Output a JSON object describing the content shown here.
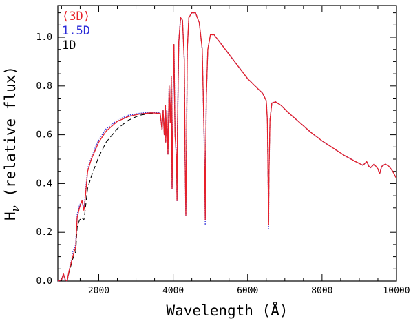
{
  "chart_data": {
    "type": "line",
    "title": "",
    "xlabel": "Wavelength (Å)",
    "ylabel": "H",
    "ylabel_subscript": "ν",
    "ylabel_suffix": " (relative flux)",
    "xlim": [
      900,
      10000
    ],
    "ylim": [
      0,
      1.13
    ],
    "xticks": [
      2000,
      4000,
      6000,
      8000,
      10000
    ],
    "yticks": [
      0.0,
      0.2,
      0.4,
      0.6,
      0.8,
      1.0
    ],
    "xtick_labels": [
      "2000",
      "4000",
      "6000",
      "8000",
      "10000"
    ],
    "ytick_labels": [
      "0.0",
      "0.2",
      "0.4",
      "0.6",
      "0.8",
      "1.0"
    ],
    "legend_position": "top-left",
    "series": [
      {
        "name": "⟨3D⟩",
        "color": "#e8202a",
        "style": "solid",
        "x": [
          900,
          1000,
          1050,
          1100,
          1150,
          1200,
          1300,
          1380,
          1420,
          1480,
          1550,
          1600,
          1620,
          1700,
          1800,
          2000,
          2200,
          2500,
          2800,
          3100,
          3400,
          3650,
          3700,
          3730,
          3760,
          3790,
          3800,
          3830,
          3860,
          3890,
          3920,
          3950,
          3970,
          4000,
          4020,
          4050,
          4090,
          4102,
          4115,
          4150,
          4200,
          4250,
          4300,
          4320,
          4340,
          4360,
          4380,
          4420,
          4500,
          4600,
          4700,
          4780,
          4830,
          4850,
          4861,
          4870,
          4890,
          4930,
          5000,
          5100,
          5200,
          5400,
          5600,
          5800,
          6000,
          6200,
          6400,
          6500,
          6530,
          6550,
          6563,
          6575,
          6600,
          6650,
          6750,
          6900,
          7100,
          7400,
          7700,
          8000,
          8300,
          8600,
          8900,
          9100,
          9200,
          9230,
          9260,
          9300,
          9400,
          9500,
          9546,
          9600,
          9700,
          9800,
          9900,
          10000
        ],
        "y": [
          0.0,
          0.005,
          0.03,
          0.005,
          0.0,
          0.04,
          0.1,
          0.14,
          0.26,
          0.3,
          0.33,
          0.29,
          0.31,
          0.45,
          0.5,
          0.57,
          0.615,
          0.655,
          0.675,
          0.685,
          0.69,
          0.688,
          0.62,
          0.7,
          0.6,
          0.72,
          0.57,
          0.7,
          0.52,
          0.8,
          0.65,
          0.84,
          0.38,
          0.8,
          0.97,
          0.6,
          0.5,
          0.33,
          0.62,
          0.98,
          1.08,
          1.07,
          0.9,
          0.5,
          0.27,
          0.6,
          0.95,
          1.08,
          1.1,
          1.1,
          1.06,
          0.95,
          0.6,
          0.4,
          0.25,
          0.45,
          0.75,
          0.95,
          1.01,
          1.01,
          0.99,
          0.95,
          0.91,
          0.87,
          0.83,
          0.8,
          0.77,
          0.74,
          0.66,
          0.4,
          0.23,
          0.45,
          0.66,
          0.73,
          0.735,
          0.72,
          0.69,
          0.65,
          0.61,
          0.575,
          0.545,
          0.515,
          0.49,
          0.475,
          0.49,
          0.48,
          0.47,
          0.465,
          0.48,
          0.46,
          0.44,
          0.47,
          0.48,
          0.47,
          0.45,
          0.42
        ]
      },
      {
        "name": "1.5D",
        "color": "#2a2ad8",
        "style": "dotted",
        "x": [
          900,
          1000,
          1050,
          1100,
          1150,
          1200,
          1300,
          1380,
          1420,
          1480,
          1550,
          1600,
          1620,
          1700,
          1800,
          2000,
          2200,
          2500,
          2800,
          3100,
          3400,
          3650,
          3700,
          3730,
          3760,
          3790,
          3800,
          3830,
          3860,
          3890,
          3920,
          3950,
          3970,
          4000,
          4020,
          4050,
          4090,
          4102,
          4115,
          4150,
          4200,
          4250,
          4300,
          4320,
          4340,
          4360,
          4380,
          4420,
          4500,
          4600,
          4700,
          4780,
          4830,
          4850,
          4861,
          4870,
          4890,
          4930,
          5000,
          5100,
          5200,
          5400,
          5600,
          5800,
          6000,
          6200,
          6400,
          6500,
          6530,
          6550,
          6563,
          6575,
          6600,
          6650,
          6750,
          6900,
          7100,
          7400,
          7700,
          8000,
          8300,
          8600,
          8900,
          9100,
          9200,
          9230,
          9260,
          9300,
          9400,
          9500,
          9546,
          9600,
          9700,
          9800,
          9900,
          10000
        ],
        "y": [
          0.0,
          0.005,
          0.03,
          0.005,
          0.0,
          0.04,
          0.12,
          0.15,
          0.27,
          0.31,
          0.33,
          0.3,
          0.32,
          0.46,
          0.51,
          0.58,
          0.625,
          0.66,
          0.68,
          0.688,
          0.692,
          0.69,
          0.62,
          0.7,
          0.6,
          0.72,
          0.57,
          0.7,
          0.52,
          0.8,
          0.65,
          0.84,
          0.38,
          0.8,
          0.97,
          0.6,
          0.5,
          0.33,
          0.62,
          0.98,
          1.08,
          1.07,
          0.9,
          0.5,
          0.27,
          0.6,
          0.95,
          1.08,
          1.1,
          1.1,
          1.06,
          0.95,
          0.6,
          0.4,
          0.23,
          0.45,
          0.75,
          0.95,
          1.01,
          1.01,
          0.99,
          0.95,
          0.91,
          0.87,
          0.83,
          0.8,
          0.77,
          0.74,
          0.66,
          0.4,
          0.21,
          0.45,
          0.66,
          0.73,
          0.735,
          0.72,
          0.69,
          0.65,
          0.61,
          0.575,
          0.545,
          0.515,
          0.49,
          0.475,
          0.49,
          0.48,
          0.47,
          0.465,
          0.48,
          0.46,
          0.44,
          0.47,
          0.48,
          0.47,
          0.45,
          0.42
        ]
      },
      {
        "name": "1D",
        "color": "#000000",
        "style": "dashed",
        "x": [
          900,
          1000,
          1050,
          1100,
          1150,
          1200,
          1300,
          1380,
          1420,
          1480,
          1550,
          1600,
          1620,
          1700,
          1800,
          2000,
          2200,
          2500,
          2800,
          3100,
          3400,
          3650,
          3700,
          3730,
          3760,
          3790,
          3800,
          3830,
          3860,
          3890,
          3920,
          3950,
          3970,
          4000,
          4020,
          4050,
          4090,
          4102,
          4115,
          4150,
          4200,
          4250,
          4300,
          4320,
          4340,
          4360,
          4380,
          4420,
          4500,
          4600,
          4700,
          4780,
          4830,
          4850,
          4861,
          4870,
          4890,
          4930,
          5000,
          5100,
          5200,
          5400,
          5600,
          5800,
          6000,
          6200,
          6400,
          6500,
          6530,
          6550,
          6563,
          6575,
          6600,
          6650,
          6750,
          6900,
          7100,
          7400,
          7700,
          8000,
          8300,
          8600,
          8900,
          9100,
          9200,
          9230,
          9260,
          9300,
          9400,
          9500,
          9546,
          9600,
          9700,
          9800,
          9900,
          10000
        ],
        "y": [
          0.0,
          0.005,
          0.025,
          0.005,
          0.0,
          0.035,
          0.09,
          0.12,
          0.22,
          0.25,
          0.26,
          0.25,
          0.27,
          0.38,
          0.43,
          0.51,
          0.57,
          0.625,
          0.66,
          0.68,
          0.688,
          0.688,
          0.62,
          0.7,
          0.6,
          0.72,
          0.57,
          0.7,
          0.52,
          0.8,
          0.65,
          0.84,
          0.38,
          0.8,
          0.97,
          0.6,
          0.5,
          0.33,
          0.62,
          0.98,
          1.08,
          1.07,
          0.9,
          0.5,
          0.28,
          0.6,
          0.95,
          1.08,
          1.1,
          1.1,
          1.06,
          0.95,
          0.6,
          0.4,
          0.26,
          0.45,
          0.75,
          0.95,
          1.01,
          1.01,
          0.99,
          0.95,
          0.91,
          0.87,
          0.83,
          0.8,
          0.77,
          0.74,
          0.66,
          0.4,
          0.24,
          0.45,
          0.66,
          0.73,
          0.735,
          0.72,
          0.69,
          0.65,
          0.61,
          0.575,
          0.545,
          0.515,
          0.49,
          0.475,
          0.49,
          0.48,
          0.47,
          0.465,
          0.48,
          0.46,
          0.44,
          0.47,
          0.48,
          0.47,
          0.45,
          0.42
        ]
      }
    ]
  }
}
